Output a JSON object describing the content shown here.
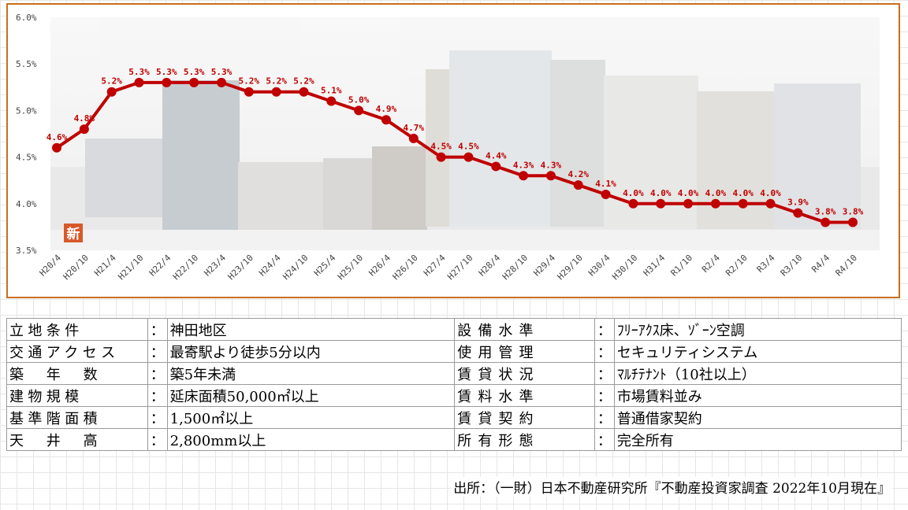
{
  "chart_data": {
    "type": "line",
    "categories": [
      "H20/4",
      "H20/10",
      "H21/4",
      "H21/10",
      "H22/4",
      "H22/10",
      "H23/4",
      "H23/10",
      "H24/4",
      "H24/10",
      "H25/4",
      "H25/10",
      "H26/4",
      "H26/10",
      "H27/4",
      "H27/10",
      "H28/4",
      "H28/10",
      "H29/4",
      "H29/10",
      "H30/4",
      "H30/10",
      "H31/4",
      "R1/10",
      "R2/4",
      "R2/10",
      "R3/4",
      "R3/10",
      "R4/4",
      "R4/10"
    ],
    "values": [
      4.6,
      4.8,
      5.2,
      5.3,
      5.3,
      5.3,
      5.3,
      5.2,
      5.2,
      5.2,
      5.1,
      5.0,
      4.9,
      4.7,
      4.5,
      4.5,
      4.4,
      4.3,
      4.3,
      4.2,
      4.1,
      4.0,
      4.0,
      4.0,
      4.0,
      4.0,
      4.0,
      3.9,
      3.8,
      3.8
    ],
    "data_labels": [
      "4.6%",
      "4.8%",
      "5.2%",
      "5.3%",
      "5.3%",
      "5.3%",
      "5.3%",
      "5.2%",
      "5.2%",
      "5.2%",
      "5.1%",
      "5.0%",
      "4.9%",
      "4.7%",
      "4.5%",
      "4.5%",
      "4.4%",
      "4.3%",
      "4.3%",
      "4.2%",
      "4.1%",
      "4.0%",
      "4.0%",
      "4.0%",
      "4.0%",
      "4.0%",
      "4.0%",
      "3.9%",
      "3.8%",
      "3.8%"
    ],
    "ylim": [
      3.5,
      6.0
    ],
    "yticks": [
      "3.5%",
      "4.0%",
      "4.5%",
      "5.0%",
      "5.5%",
      "6.0%"
    ],
    "line_color": "#c00000",
    "grid": false,
    "background": "photo of office buildings",
    "badge": "新"
  },
  "conditions": {
    "left": [
      {
        "label": "立地条件",
        "colon": "：",
        "value": "神田地区"
      },
      {
        "label": "交通アクセス",
        "colon": "：",
        "value": "最寄駅より徒歩5分以内"
      },
      {
        "label": "築　年　数",
        "colon": "：",
        "value": "築5年未満"
      },
      {
        "label": "建物規模",
        "colon": "：",
        "value": "延床面積50,000㎡以上"
      },
      {
        "label": "基準階面積",
        "colon": "：",
        "value": "1,500㎡以上"
      },
      {
        "label": "天　井　高",
        "colon": "：",
        "value": "2,800mm以上"
      }
    ],
    "right": [
      {
        "label": "設備水準",
        "colon": "：",
        "value": "ﾌﾘｰｱｸｽ床、ｿﾞｰﾝ空調"
      },
      {
        "label": "使用管理",
        "colon": "：",
        "value": "セキュリティシステム"
      },
      {
        "label": "賃貸状況",
        "colon": "：",
        "value": "ﾏﾙﾁﾃﾅﾝﾄ（10社以上）"
      },
      {
        "label": "賃料水準",
        "colon": "：",
        "value": "市場賃料並み"
      },
      {
        "label": "賃貸契約",
        "colon": "：",
        "value": "普通借家契約"
      },
      {
        "label": "所有形態",
        "colon": "：",
        "value": "完全所有"
      }
    ]
  },
  "source_note": "出所：（一財）日本不動産研究所『不動産投資家調査 2022年10月現在』"
}
